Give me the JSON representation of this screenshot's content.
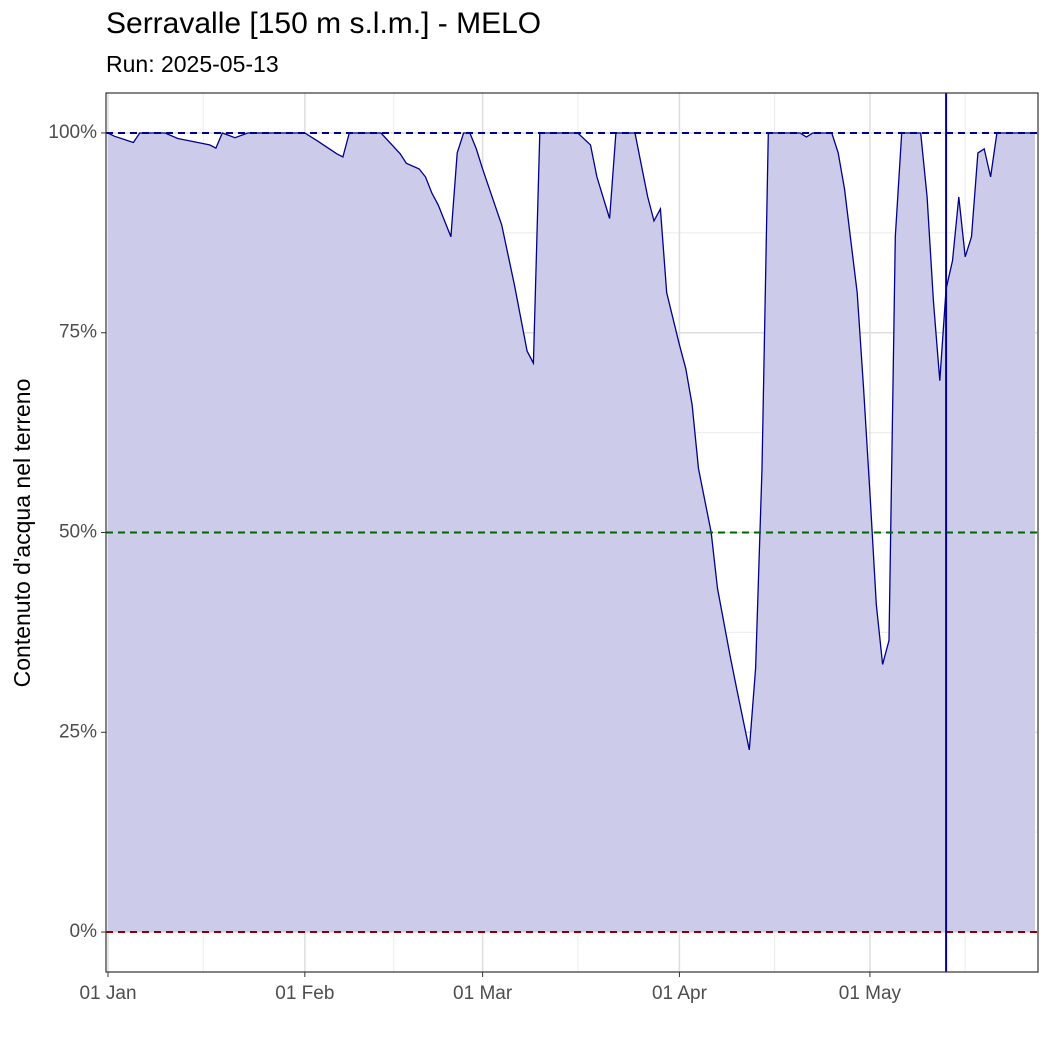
{
  "chart_data": {
    "type": "area",
    "title": "Serravalle [150 m s.l.m.] - MELO",
    "subtitle": "Run: 2025-05-13",
    "y_label": "Contenuto d'acqua nel terreno",
    "color": "#00008b",
    "fill": "#ccccea",
    "grid": true,
    "ylim": [
      -5,
      105
    ],
    "yticks": [
      {
        "value": 0,
        "label": "0%"
      },
      {
        "value": 25,
        "label": "25%"
      },
      {
        "value": 50,
        "label": "50%"
      },
      {
        "value": 75,
        "label": "75%"
      },
      {
        "value": 100,
        "label": "100%"
      }
    ],
    "minor_yticks": [
      12.5,
      37.5,
      62.5,
      87.5
    ],
    "xlim": [
      "01-01",
      "05-27"
    ],
    "xticks": [
      {
        "value": "01-01",
        "label": "01 Jan"
      },
      {
        "value": "02-01",
        "label": "01 Feb"
      },
      {
        "value": "03-01",
        "label": "01 Mar"
      },
      {
        "value": "04-01",
        "label": "01 Apr"
      },
      {
        "value": "05-01",
        "label": "01 May"
      }
    ],
    "minor_xticks": [
      "01-16",
      "02-15",
      "03-16",
      "04-16",
      "05-16"
    ],
    "vline": "05-13",
    "hlines": [
      {
        "value": 100,
        "color": "#00008b"
      },
      {
        "value": 50,
        "color": "#006400"
      },
      {
        "value": 0,
        "color": "#8b0000"
      }
    ],
    "x": [
      "01-01",
      "01-02",
      "01-05",
      "01-06",
      "01-10",
      "01-12",
      "01-17",
      "01-18",
      "01-19",
      "01-21",
      "01-23",
      "02-01",
      "02-03",
      "02-06",
      "02-07",
      "02-08",
      "02-13",
      "02-16",
      "02-17",
      "02-19",
      "02-20",
      "02-21",
      "02-22",
      "02-24",
      "02-25",
      "02-26",
      "02-27",
      "02-28",
      "03-01",
      "03-04",
      "03-06",
      "03-08",
      "03-09",
      "03-10",
      "03-16",
      "03-18",
      "03-19",
      "03-21",
      "03-22",
      "03-25",
      "03-26",
      "03-27",
      "03-28",
      "03-29",
      "03-30",
      "04-01",
      "04-02",
      "04-03",
      "04-04",
      "04-06",
      "04-07",
      "04-09",
      "04-10",
      "04-12",
      "04-13",
      "04-14",
      "04-15",
      "04-20",
      "04-21",
      "04-22",
      "04-25",
      "04-26",
      "04-27",
      "04-29",
      "04-30",
      "05-01",
      "05-02",
      "05-03",
      "05-04",
      "05-05",
      "05-06",
      "05-09",
      "05-10",
      "05-11",
      "05-12",
      "05-13",
      "05-14",
      "05-15",
      "05-16",
      "05-17",
      "05-18",
      "05-19",
      "05-20",
      "05-21",
      "05-27"
    ],
    "values": [
      100,
      99.6,
      98.8,
      100,
      100,
      99.3,
      98.5,
      98.1,
      100,
      99.4,
      100,
      100,
      99,
      97.4,
      97,
      100,
      100,
      97.4,
      96.2,
      95.5,
      94.5,
      92.5,
      91,
      87,
      97.5,
      100,
      100,
      98,
      95.5,
      88.5,
      81,
      72.7,
      71.2,
      100,
      100,
      98.5,
      94.5,
      89.3,
      100,
      100,
      96,
      92,
      89,
      90.5,
      80,
      73.5,
      70.5,
      66,
      58,
      50,
      43,
      34.5,
      30.5,
      22.8,
      33,
      58,
      100,
      100,
      99.5,
      100,
      100,
      97.5,
      93,
      80,
      68,
      55,
      41,
      33.5,
      36.5,
      87,
      100,
      100,
      92,
      79,
      69,
      80.5,
      84,
      92,
      84.5,
      87,
      97.5,
      98,
      94.5,
      100,
      100
    ]
  }
}
